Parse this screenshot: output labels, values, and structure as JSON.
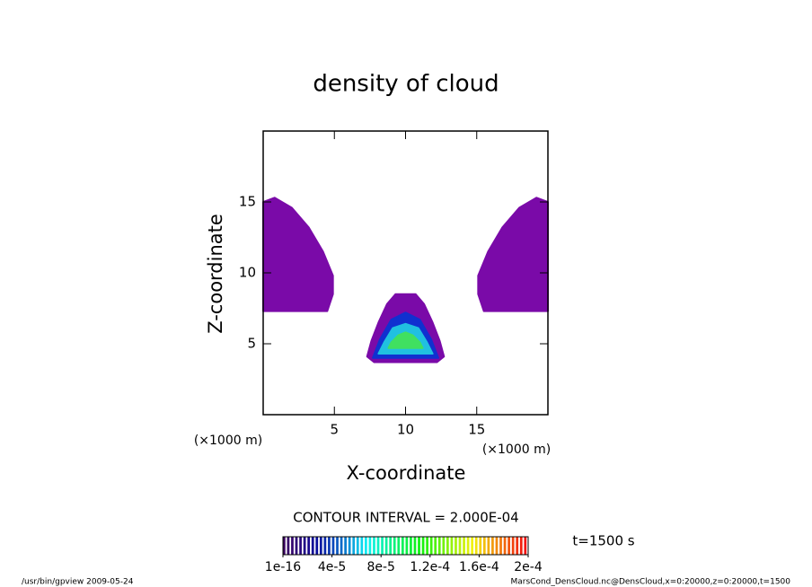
{
  "chart_data": {
    "type": "contour",
    "title": "density of cloud",
    "x_label": "X-coordinate",
    "y_label": "Z-coordinate",
    "x_units": "(×1000 m)",
    "y_units": "(×1000 m)",
    "xlim": [
      0,
      20
    ],
    "ylim": [
      0,
      20
    ],
    "xticks": [
      5,
      10,
      15
    ],
    "yticks": [
      5,
      10,
      15
    ],
    "contours": [
      {
        "color": "#7a0aa8",
        "x": [
          0,
          0.8,
          2.0,
          3.2,
          4.2,
          4.9,
          4.9,
          4.5,
          0
        ],
        "y": [
          15.0,
          15.3,
          14.6,
          13.2,
          11.5,
          9.8,
          8.5,
          7.3,
          7.3
        ]
      },
      {
        "color": "#7a0aa8",
        "x": [
          20,
          19.2,
          18.0,
          16.8,
          15.8,
          15.1,
          15.1,
          15.5,
          20
        ],
        "y": [
          15.0,
          15.3,
          14.6,
          13.2,
          11.5,
          9.8,
          8.5,
          7.3,
          7.3
        ]
      },
      {
        "color": "#7a0aa8",
        "x": [
          9.3,
          10.7,
          11.3,
          11.9,
          12.4,
          12.7,
          12.2,
          7.8,
          7.3,
          7.6,
          8.1,
          8.7
        ],
        "y": [
          8.5,
          8.5,
          7.8,
          6.5,
          5.2,
          4.1,
          3.7,
          3.7,
          4.1,
          5.2,
          6.5,
          7.8
        ]
      },
      {
        "color": "#1030d0",
        "x": [
          7.7,
          8.2,
          9.0,
          10,
          11.0,
          11.8,
          12.3
        ],
        "y": [
          4.0,
          5.3,
          6.7,
          7.2,
          6.7,
          5.3,
          4.0
        ]
      },
      {
        "color": "#20c0e0",
        "x": [
          8.1,
          8.5,
          9.1,
          10,
          10.9,
          11.5,
          11.9
        ],
        "y": [
          4.3,
          5.1,
          6.1,
          6.4,
          6.1,
          5.1,
          4.3
        ]
      },
      {
        "color": "#40e060",
        "x": [
          8.8,
          9.0,
          9.5,
          10,
          10.5,
          11.0,
          11.2
        ],
        "y": [
          4.7,
          5.1,
          5.6,
          5.8,
          5.6,
          5.1,
          4.7
        ]
      }
    ],
    "contour_interval": "CONTOUR INTERVAL = 2.000E-04",
    "time_label": "t=1500 s",
    "colorbar": {
      "lim": [
        1e-16,
        0.0002
      ],
      "ticks": [
        {
          "value": 1e-16,
          "label": "1e-16"
        },
        {
          "value": 4e-05,
          "label": "4e-5"
        },
        {
          "value": 8e-05,
          "label": "8e-5"
        },
        {
          "value": 0.00012,
          "label": "1.2e-4"
        },
        {
          "value": 0.00016,
          "label": "1.6e-4"
        },
        {
          "value": 0.0002,
          "label": "2e-4"
        }
      ]
    },
    "footer_left": "/usr/bin/gpview  2009-05-24",
    "footer_right": "MarsCond_DensCloud.nc@DensCloud,x=0:20000,z=0:20000,t=1500"
  }
}
